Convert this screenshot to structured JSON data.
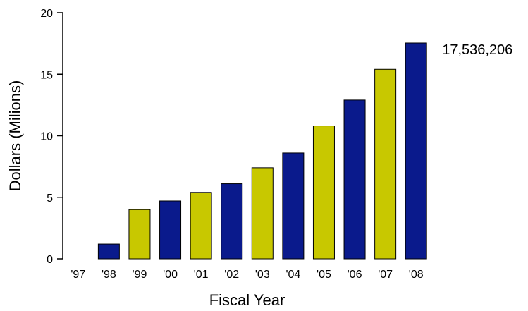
{
  "chart_data": {
    "type": "bar",
    "title": "",
    "xlabel": "Fiscal Year",
    "ylabel": "Dollars (Milions)",
    "categories": [
      "'97",
      "'98",
      "'99",
      "'00",
      "'01",
      "'02",
      "'03",
      "'04",
      "'05",
      "'06",
      "'07",
      "'08"
    ],
    "values": [
      0,
      1.2,
      4.0,
      4.7,
      5.4,
      6.1,
      7.4,
      8.6,
      10.8,
      12.9,
      15.4,
      17.536206
    ],
    "bar_colors": [
      "#0a1a8c",
      "#0a1a8c",
      "#c8c800",
      "#0a1a8c",
      "#c8c800",
      "#0a1a8c",
      "#c8c800",
      "#0a1a8c",
      "#c8c800",
      "#0a1a8c",
      "#c8c800",
      "#0a1a8c"
    ],
    "ylim": [
      0,
      20
    ],
    "yticks": [
      "0",
      "5",
      "10",
      "15",
      "20"
    ],
    "grid": false,
    "legend": "none",
    "annotations": [
      {
        "category": "'08",
        "text": "17,536,206"
      }
    ]
  }
}
